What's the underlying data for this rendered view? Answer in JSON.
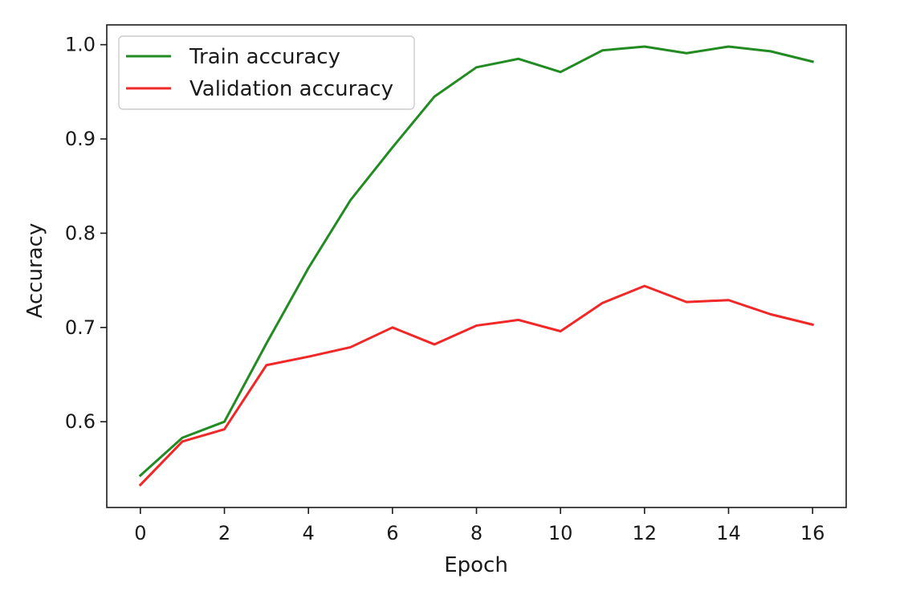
{
  "chart_data": {
    "type": "line",
    "title": "",
    "xlabel": "Epoch",
    "ylabel": "Accuracy",
    "xlim": [
      -0.8,
      16.8
    ],
    "ylim": [
      0.509,
      1.021
    ],
    "xticks": [
      0,
      2,
      4,
      6,
      8,
      10,
      12,
      14,
      16
    ],
    "yticks": [
      0.6,
      0.7,
      0.8,
      0.9,
      1.0
    ],
    "ytick_labels": [
      "0.6",
      "0.7",
      "0.8",
      "0.9",
      "1.0"
    ],
    "grid": false,
    "legend_position": "upper-left",
    "x": [
      0,
      1,
      2,
      3,
      4,
      5,
      6,
      7,
      8,
      9,
      10,
      11,
      12,
      13,
      14,
      15,
      16
    ],
    "series": [
      {
        "name": "Train accuracy",
        "color": "#228B22",
        "values": [
          0.543,
          0.583,
          0.6,
          0.683,
          0.763,
          0.835,
          0.891,
          0.945,
          0.976,
          0.985,
          0.971,
          0.994,
          0.998,
          0.991,
          0.998,
          0.993,
          0.982
        ]
      },
      {
        "name": "Validation accuracy",
        "color": "#F02828",
        "values": [
          0.533,
          0.579,
          0.592,
          0.66,
          0.669,
          0.679,
          0.7,
          0.682,
          0.702,
          0.708,
          0.696,
          0.726,
          0.744,
          0.727,
          0.729,
          0.714,
          0.703
        ]
      }
    ]
  }
}
